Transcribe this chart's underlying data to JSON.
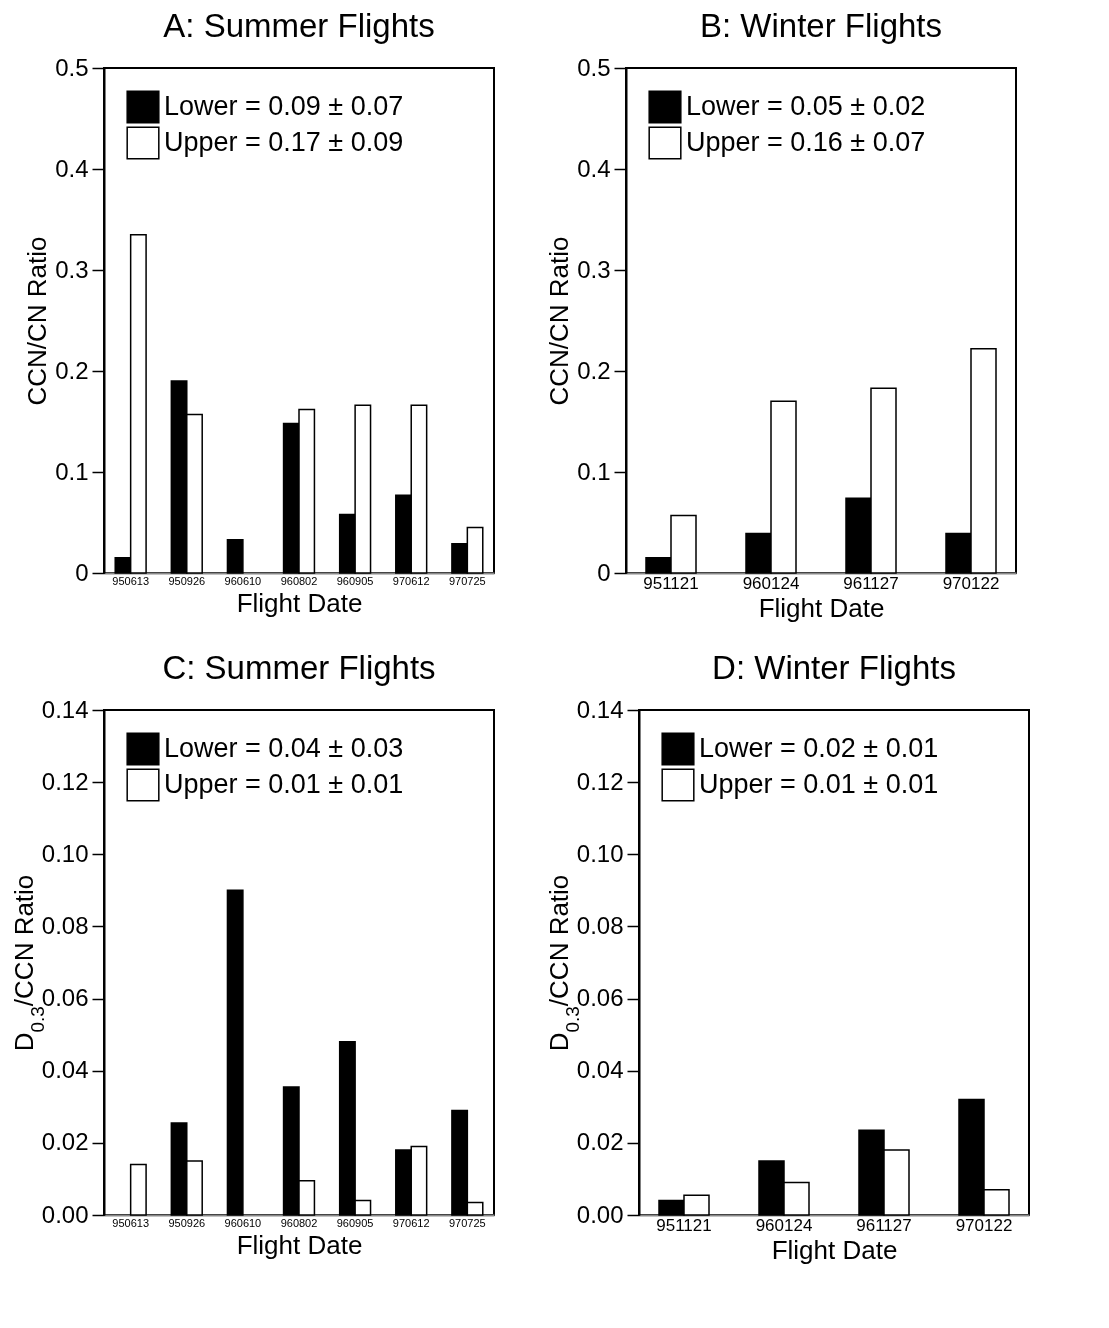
{
  "chart_data": [
    {
      "type": "bar",
      "title": "A:  Summer Flights",
      "xlabel": "Flight Date",
      "ylabel": "CCN/CN Ratio",
      "categories": [
        "950613",
        "950926",
        "960610",
        "960802",
        "960905",
        "970612",
        "970725"
      ],
      "series": [
        {
          "name": "Lower = 0.09 ± 0.07",
          "color": "#000000",
          "values": [
            0.015,
            0.19,
            0.033,
            0.148,
            0.058,
            0.077,
            0.029
          ]
        },
        {
          "name": "Upper = 0.17 ± 0.09",
          "color": "#ffffff",
          "values": [
            0.335,
            0.157,
            null,
            0.162,
            0.166,
            0.166,
            0.045
          ]
        }
      ],
      "ylim": [
        0,
        0.5
      ],
      "yticks": [
        0,
        0.1,
        0.2,
        0.3,
        0.4,
        0.5
      ],
      "legend": "top left"
    },
    {
      "type": "bar",
      "title": "B:  Winter Flights",
      "xlabel": "Flight Date",
      "ylabel": "CCN/CN Ratio",
      "categories": [
        "951121",
        "960124",
        "961127",
        "970122"
      ],
      "series": [
        {
          "name": "Lower = 0.05 ± 0.02",
          "color": "#000000",
          "values": [
            0.015,
            0.039,
            0.074,
            0.039
          ]
        },
        {
          "name": "Upper = 0.16 ± 0.07",
          "color": "#ffffff",
          "values": [
            0.057,
            0.17,
            0.183,
            0.222
          ]
        }
      ],
      "ylim": [
        0,
        0.5
      ],
      "yticks": [
        0,
        0.1,
        0.2,
        0.3,
        0.4,
        0.5
      ],
      "legend": "top left"
    },
    {
      "type": "bar",
      "title": "C:  Summer Flights",
      "xlabel": "Flight Date",
      "ylabel": "D$_{0.3}$/CCN Ratio",
      "categories": [
        "950613",
        "950926",
        "960610",
        "960802",
        "960905",
        "970612",
        "970725"
      ],
      "series": [
        {
          "name": "Lower = 0.04 ± 0.03",
          "color": "#000000",
          "values": [
            null,
            0.0255,
            0.09,
            0.0355,
            0.048,
            0.018,
            0.029
          ]
        },
        {
          "name": "Upper = 0.01 ± 0.01",
          "color": "#ffffff",
          "values": [
            0.014,
            0.015,
            null,
            0.0095,
            0.004,
            0.019,
            0.0035
          ]
        }
      ],
      "ylim": [
        0,
        0.14
      ],
      "yticks": [
        {
          "value": 0,
          "label": "0.00"
        },
        {
          "value": 0.02,
          "label": "0.02"
        },
        {
          "value": 0.04,
          "label": "0.04"
        },
        {
          "value": 0.06,
          "label": "0.06"
        },
        {
          "value": 0.08,
          "label": "0.08"
        },
        {
          "value": 0.1,
          "label": "0.10"
        },
        {
          "value": 0.12,
          "label": "0.12"
        },
        {
          "value": 0.14,
          "label": "0.14"
        }
      ],
      "legend": "top left"
    },
    {
      "type": "bar",
      "title": "D:  Winter Flights",
      "xlabel": "Flight Date",
      "ylabel": "D$_{0.3}$/CCN Ratio",
      "categories": [
        "951121",
        "960124",
        "961127",
        "970122"
      ],
      "series": [
        {
          "name": "Lower = 0.02 ± 0.01",
          "color": "#000000",
          "values": [
            0.004,
            0.015,
            0.0235,
            0.032
          ]
        },
        {
          "name": "Upper = 0.01 ± 0.01",
          "color": "#ffffff",
          "values": [
            0.0055,
            0.009,
            0.018,
            0.007
          ]
        }
      ],
      "ylim": [
        0,
        0.14
      ],
      "yticks": [
        {
          "value": 0,
          "label": "0.00"
        },
        {
          "value": 0.02,
          "label": "0.02"
        },
        {
          "value": 0.04,
          "label": "0.04"
        },
        {
          "value": 0.06,
          "label": "0.06"
        },
        {
          "value": 0.08,
          "label": "0.08"
        },
        {
          "value": 0.1,
          "label": "0.10"
        },
        {
          "value": 0.12,
          "label": "0.12"
        },
        {
          "value": 0.14,
          "label": "0.14"
        }
      ],
      "legend": "top left"
    }
  ]
}
